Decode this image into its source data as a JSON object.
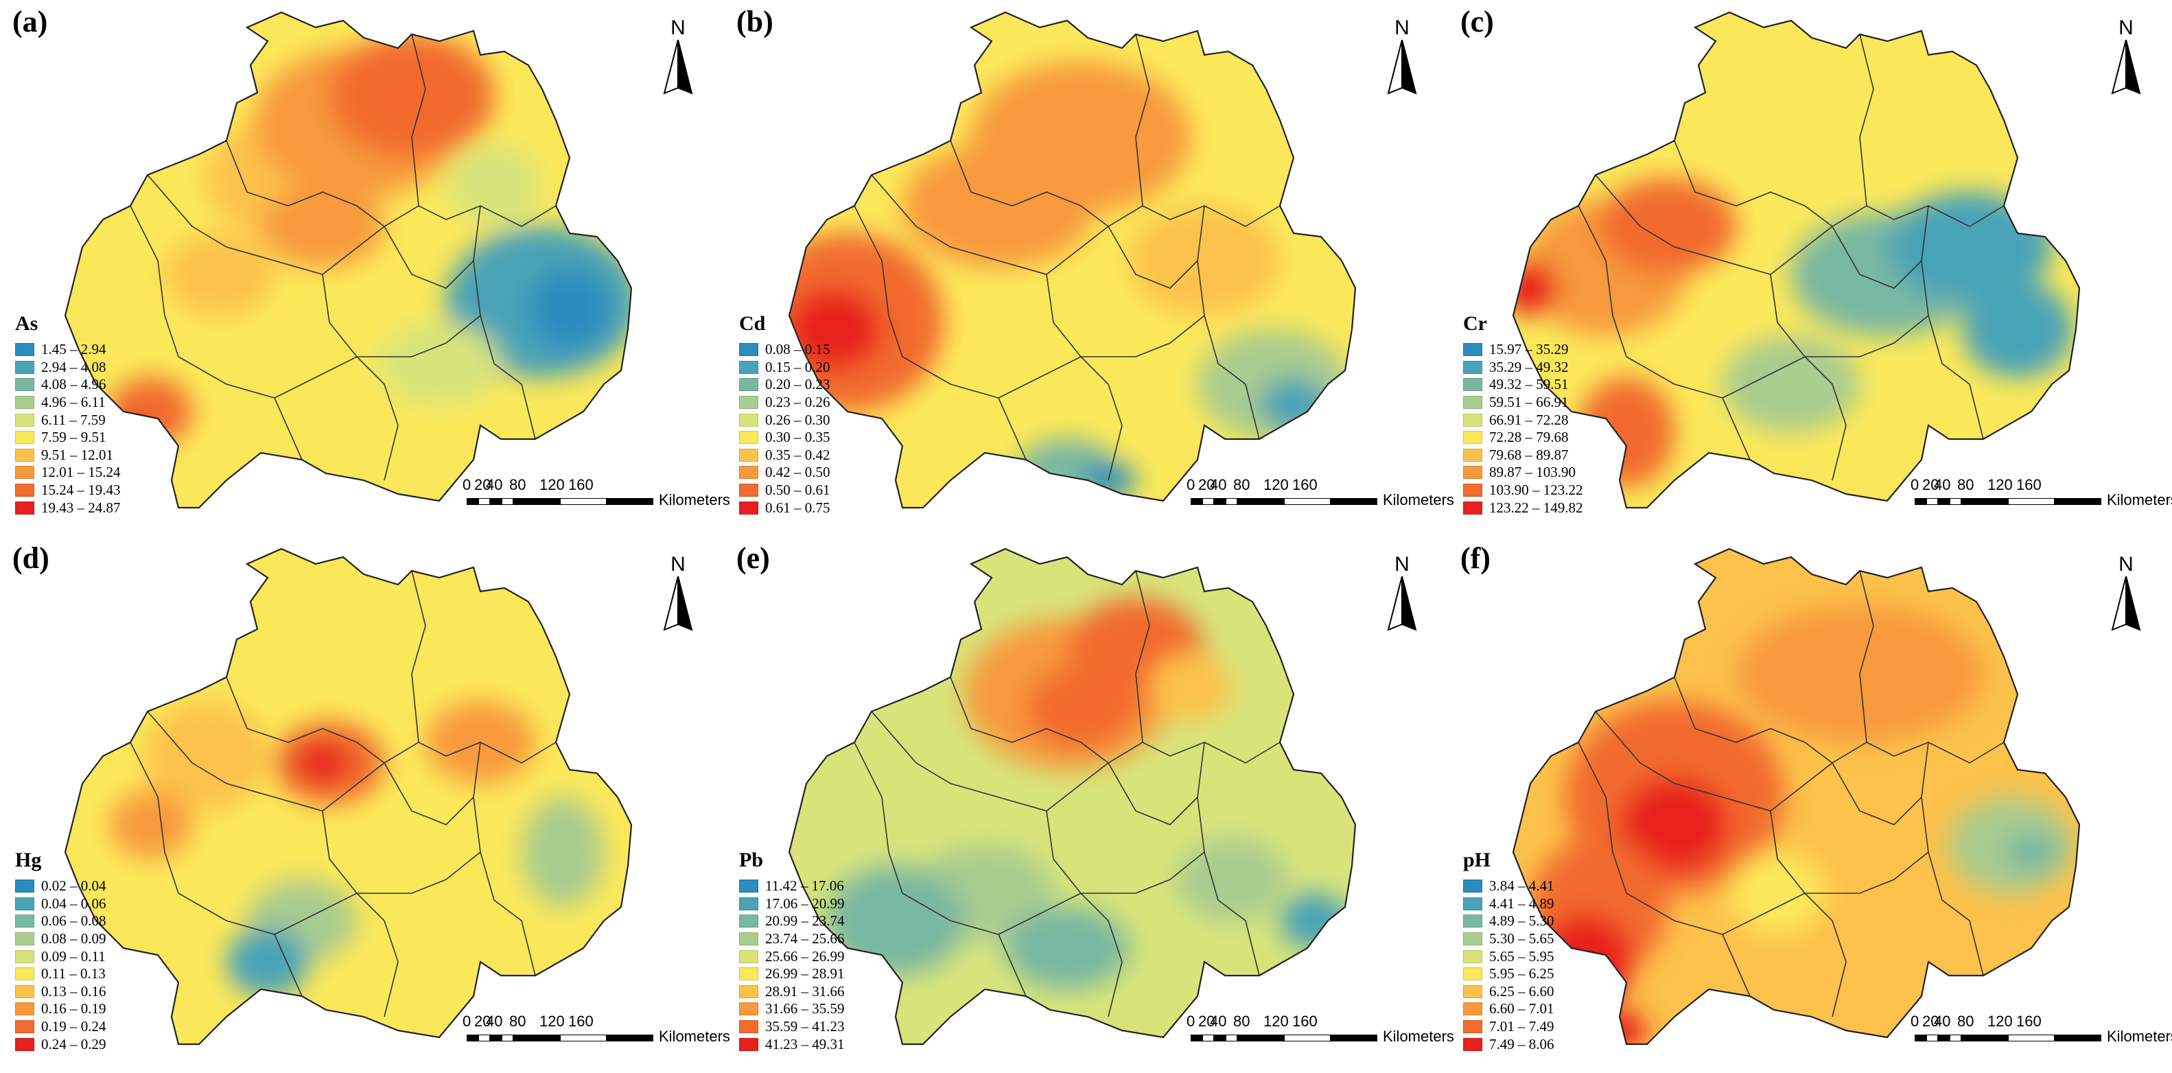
{
  "figure": {
    "panels": [
      {
        "label": "(a)",
        "variable": "As",
        "legend": [
          {
            "range": "1.45 – 2.94",
            "color": "#2b8cbe"
          },
          {
            "range": "2.94 – 4.08",
            "color": "#4aa3b7"
          },
          {
            "range": "4.08 – 4.96",
            "color": "#79b8a2"
          },
          {
            "range": "4.96 – 6.11",
            "color": "#a9cc8f"
          },
          {
            "range": "6.11 – 7.59",
            "color": "#d7e47a"
          },
          {
            "range": "7.59 – 9.51",
            "color": "#fbe85a"
          },
          {
            "range": "9.51 – 12.01",
            "color": "#fcc24b"
          },
          {
            "range": "12.01 – 15.24",
            "color": "#f89a3c"
          },
          {
            "range": "15.24 – 19.43",
            "color": "#f26b2f"
          },
          {
            "range": "19.43 – 24.87",
            "color": "#e8201e"
          }
        ]
      },
      {
        "label": "(b)",
        "variable": "Cd",
        "legend": [
          {
            "range": "0.08 – 0.15",
            "color": "#2b8cbe"
          },
          {
            "range": "0.15 – 0.20",
            "color": "#4aa3b7"
          },
          {
            "range": "0.20 – 0.23",
            "color": "#79b8a2"
          },
          {
            "range": "0.23 – 0.26",
            "color": "#a9cc8f"
          },
          {
            "range": "0.26 – 0.30",
            "color": "#d7e47a"
          },
          {
            "range": "0.30 – 0.35",
            "color": "#fbe85a"
          },
          {
            "range": "0.35 – 0.42",
            "color": "#fcc24b"
          },
          {
            "range": "0.42 – 0.50",
            "color": "#f89a3c"
          },
          {
            "range": "0.50 – 0.61",
            "color": "#f26b2f"
          },
          {
            "range": "0.61 – 0.75",
            "color": "#e8201e"
          }
        ]
      },
      {
        "label": "(c)",
        "variable": "Cr",
        "legend": [
          {
            "range": "15.97 – 35.29",
            "color": "#2b8cbe"
          },
          {
            "range": "35.29 – 49.32",
            "color": "#4aa3b7"
          },
          {
            "range": "49.32 – 59.51",
            "color": "#79b8a2"
          },
          {
            "range": "59.51 – 66.91",
            "color": "#a9cc8f"
          },
          {
            "range": "66.91 – 72.28",
            "color": "#d7e47a"
          },
          {
            "range": "72.28 – 79.68",
            "color": "#fbe85a"
          },
          {
            "range": "79.68 – 89.87",
            "color": "#fcc24b"
          },
          {
            "range": "89.87 – 103.90",
            "color": "#f89a3c"
          },
          {
            "range": "103.90 – 123.22",
            "color": "#f26b2f"
          },
          {
            "range": "123.22 – 149.82",
            "color": "#e8201e"
          }
        ]
      },
      {
        "label": "(d)",
        "variable": "Hg",
        "legend": [
          {
            "range": "0.02 – 0.04",
            "color": "#2b8cbe"
          },
          {
            "range": "0.04 – 0.06",
            "color": "#4aa3b7"
          },
          {
            "range": "0.06 – 0.08",
            "color": "#79b8a2"
          },
          {
            "range": "0.08 – 0.09",
            "color": "#a9cc8f"
          },
          {
            "range": "0.09 – 0.11",
            "color": "#d7e47a"
          },
          {
            "range": "0.11 – 0.13",
            "color": "#fbe85a"
          },
          {
            "range": "0.13 – 0.16",
            "color": "#fcc24b"
          },
          {
            "range": "0.16 – 0.19",
            "color": "#f89a3c"
          },
          {
            "range": "0.19 – 0.24",
            "color": "#f26b2f"
          },
          {
            "range": "0.24 – 0.29",
            "color": "#e8201e"
          }
        ]
      },
      {
        "label": "(e)",
        "variable": "Pb",
        "legend": [
          {
            "range": "11.42 – 17.06",
            "color": "#2b8cbe"
          },
          {
            "range": "17.06 – 20.99",
            "color": "#4aa3b7"
          },
          {
            "range": "20.99 – 23.74",
            "color": "#79b8a2"
          },
          {
            "range": "23.74 – 25.66",
            "color": "#a9cc8f"
          },
          {
            "range": "25.66 – 26.99",
            "color": "#d7e47a"
          },
          {
            "range": "26.99 – 28.91",
            "color": "#fbe85a"
          },
          {
            "range": "28.91 – 31.66",
            "color": "#fcc24b"
          },
          {
            "range": "31.66 – 35.59",
            "color": "#f89a3c"
          },
          {
            "range": "35.59 – 41.23",
            "color": "#f26b2f"
          },
          {
            "range": "41.23 – 49.31",
            "color": "#e8201e"
          }
        ]
      },
      {
        "label": "(f)",
        "variable": "pH",
        "legend": [
          {
            "range": "3.84 – 4.41",
            "color": "#2b8cbe"
          },
          {
            "range": "4.41 – 4.89",
            "color": "#4aa3b7"
          },
          {
            "range": "4.89 – 5.30",
            "color": "#79b8a2"
          },
          {
            "range": "5.30 – 5.65",
            "color": "#a9cc8f"
          },
          {
            "range": "5.65 – 5.95",
            "color": "#d7e47a"
          },
          {
            "range": "5.95 – 6.25",
            "color": "#fbe85a"
          },
          {
            "range": "6.25 – 6.60",
            "color": "#fcc24b"
          },
          {
            "range": "6.60 – 7.01",
            "color": "#f89a3c"
          },
          {
            "range": "7.01 – 7.49",
            "color": "#f26b2f"
          },
          {
            "range": "7.49 – 8.06",
            "color": "#e8201e"
          }
        ]
      }
    ],
    "north_label": "N",
    "scale": {
      "ticks": [
        "0",
        "20",
        "40",
        "80",
        "120",
        "160"
      ],
      "unit": "Kilometers"
    }
  }
}
